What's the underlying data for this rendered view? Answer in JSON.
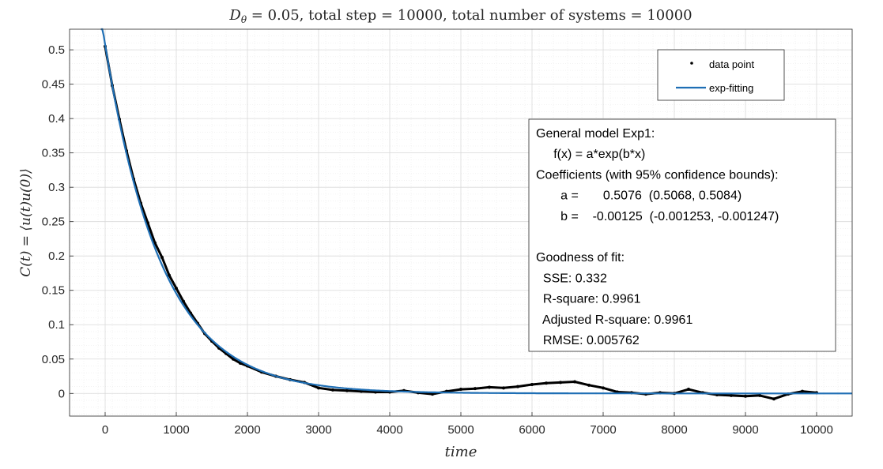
{
  "chart_data": {
    "type": "line",
    "title": "D_θ = 0.05, total step = 10000, total number of systems = 10000",
    "title_display": "Dθ = 0.05, total step = 10000, total number of systems = 10000",
    "xlabel": "time",
    "ylabel": "C(t) = ⟨u(t)u(0)⟩",
    "xlim": [
      -500,
      10500
    ],
    "ylim": [
      -0.033,
      0.53
    ],
    "x_ticks": [
      0,
      1000,
      2000,
      3000,
      4000,
      5000,
      6000,
      7000,
      8000,
      9000,
      10000
    ],
    "y_ticks": [
      0,
      0.05,
      0.1,
      0.15,
      0.2,
      0.25,
      0.3,
      0.35,
      0.4,
      0.45,
      0.5
    ],
    "grid": true,
    "minor_grid": true,
    "legend_position": "top-right",
    "series": [
      {
        "name": "data point",
        "style": "black dots",
        "color": "#000000",
        "x": [
          0,
          100,
          200,
          300,
          400,
          500,
          600,
          700,
          800,
          900,
          1000,
          1100,
          1200,
          1300,
          1400,
          1500,
          1600,
          1700,
          1800,
          1900,
          2000,
          2200,
          2400,
          2600,
          2800,
          3000,
          3200,
          3400,
          3600,
          3800,
          4000,
          4200,
          4400,
          4600,
          4800,
          5000,
          5200,
          5400,
          5600,
          5800,
          6000,
          6200,
          6400,
          6600,
          6800,
          7000,
          7200,
          7400,
          7600,
          7800,
          8000,
          8200,
          8400,
          8600,
          8800,
          9000,
          9200,
          9400,
          9600,
          9800,
          10000
        ],
        "y": [
          0.505,
          0.448,
          0.399,
          0.353,
          0.312,
          0.277,
          0.248,
          0.219,
          0.198,
          0.172,
          0.153,
          0.134,
          0.117,
          0.102,
          0.087,
          0.076,
          0.066,
          0.058,
          0.05,
          0.044,
          0.04,
          0.031,
          0.025,
          0.02,
          0.016,
          0.008,
          0.005,
          0.004,
          0.003,
          0.002,
          0.002,
          0.004,
          0.001,
          -0.001,
          0.003,
          0.006,
          0.007,
          0.009,
          0.008,
          0.01,
          0.013,
          0.015,
          0.016,
          0.017,
          0.012,
          0.008,
          0.002,
          0.001,
          -0.001,
          0.001,
          0.0,
          0.006,
          0.001,
          -0.002,
          -0.003,
          -0.004,
          -0.003,
          -0.008,
          -0.001,
          0.003,
          0.001
        ]
      },
      {
        "name": "exp-fitting",
        "style": "solid line",
        "color": "#1f6fb5"
      }
    ],
    "fit": {
      "a": 0.5076,
      "b": -0.00125
    }
  },
  "legend": {
    "items": [
      "data point",
      "exp-fitting"
    ]
  },
  "fit_box": {
    "lines": [
      "General model Exp1:",
      "     f(x) = a*exp(b*x)",
      "Coefficients (with 95% confidence bounds):",
      "       a =       0.5076  (0.5068, 0.5084)",
      "       b =    -0.00125  (-0.001253, -0.001247)",
      "",
      "Goodness of fit:",
      "  SSE: 0.332",
      "  R-square: 0.9961",
      "  Adjusted R-square: 0.9961",
      "  RMSE: 0.005762"
    ]
  },
  "colors": {
    "fit_line": "#1f6fb5",
    "data": "#000000",
    "grid_major": "#d9d9d9",
    "grid_minor": "#ececec",
    "axis": "#262626"
  }
}
